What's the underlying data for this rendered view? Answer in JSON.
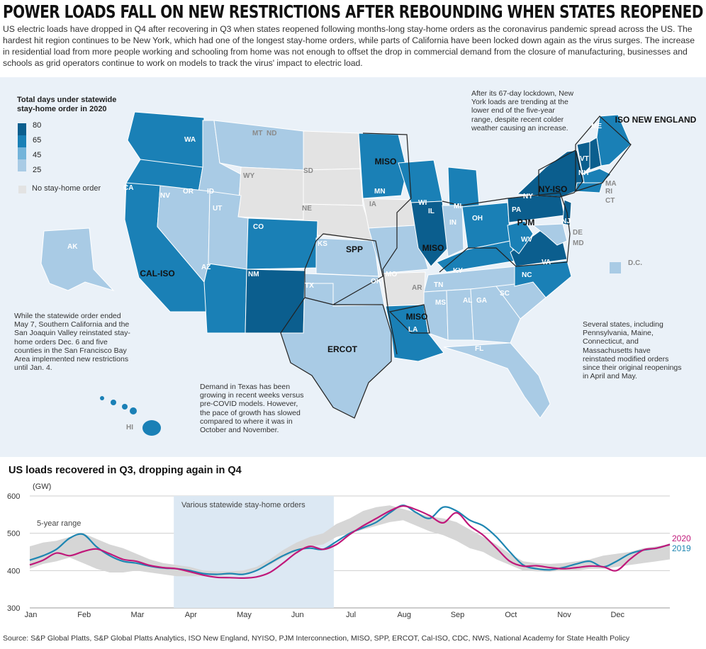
{
  "header": {
    "title": "POWER LOADS FALL ON NEW RESTRICTIONS AFTER REBOUNDING WHEN STATES REOPENED",
    "deck": "US electric loads have dropped in Q4 after recovering in Q3 when states reopened following months-long stay-home orders as the coronavirus pandemic spread across the US. The hardest hit region continues to be New York, which had one of the longest stay-home orders, while parts of California have been locked down again as the virus surges. The increase in residential load from more people working and schooling from home was not enough to offset the drop in commercial demand from the closure of manufacturing, businesses and schools as grid operators continue to work on models to track the virus' impact to electric load."
  },
  "map": {
    "legend_title": "Total days under statewide stay-home order in 2020",
    "legend_ticks": [
      "80",
      "65",
      "45",
      "25"
    ],
    "legend_colors": [
      "#0b5e8e",
      "#1a80b6",
      "#74b4da",
      "#a9cbe5"
    ],
    "no_order_label": "No stay-home order",
    "no_order_color": "#e3e3e3",
    "regions": [
      "MISO",
      "SPP",
      "ERCOT",
      "CAL-ISO",
      "PJM",
      "NY-ISO",
      "ISO NEW ENGLAND",
      "MISO"
    ],
    "states": [
      "WA",
      "OR",
      "ID",
      "MT",
      "ND",
      "SD",
      "WY",
      "NE",
      "CA",
      "NV",
      "UT",
      "CO",
      "AZ",
      "NM",
      "KS",
      "OK",
      "TX",
      "MN",
      "IA",
      "MO",
      "AR",
      "LA",
      "WI",
      "IL",
      "MI",
      "IN",
      "OH",
      "KY",
      "TN",
      "MS",
      "AL",
      "GA",
      "FL",
      "SC",
      "NC",
      "VA",
      "WV",
      "PA",
      "NY",
      "NJ",
      "DE",
      "MD",
      "VT",
      "NH",
      "ME",
      "MA",
      "RI",
      "CT",
      "AK",
      "HI",
      "D.C."
    ],
    "annotations": {
      "new_york": "After its 67-day lockdown, New York loads are trending at the lower end of the five-year range, despite recent colder weather causing an increase.",
      "california": "While the statewide order ended May 7, Southern California and the San Joaquin Valley reinstated stay-home orders Dec. 6 and five counties in the San Francisco Bay Area implemented new restrictions until Jan. 4.",
      "texas": "Demand in Texas has been growing in recent weeks versus pre-COVID models. However, the pace of growth has slowed compared to where it was in October and November.",
      "reopen_states": "Several states, including Pennsylvania, Maine, Connecticut, and Massachusetts have reinstated modified orders since their original reopenings in April and May."
    }
  },
  "chart": {
    "title": "US loads recovered in Q3, dropping again in Q4",
    "unit": "(GW)",
    "band_label": "Various statewide stay-home orders",
    "range_label": "5-year range"
  },
  "chart_data": {
    "type": "line",
    "title": "US loads recovered in Q3, dropping again in Q4",
    "ylabel": "(GW)",
    "ylim": [
      300,
      600
    ],
    "yticks": [
      300,
      400,
      500,
      600
    ],
    "xlim": [
      0,
      12
    ],
    "month_labels": [
      "Jan",
      "Feb",
      "Mar",
      "Apr",
      "May",
      "Jun",
      "Jul",
      "Aug",
      "Sep",
      "Oct",
      "Nov",
      "Dec"
    ],
    "shaded_period": {
      "label": "Various statewide stay-home orders",
      "start_month": 2.7,
      "end_month": 5.7
    },
    "x": [
      0,
      0.25,
      0.5,
      0.75,
      1,
      1.25,
      1.5,
      1.75,
      2,
      2.25,
      2.5,
      2.75,
      3,
      3.25,
      3.5,
      3.75,
      4,
      4.25,
      4.5,
      4.75,
      5,
      5.25,
      5.5,
      5.75,
      6,
      6.25,
      6.5,
      6.75,
      7,
      7.25,
      7.5,
      7.75,
      8,
      8.25,
      8.5,
      8.75,
      9,
      9.25,
      9.5,
      9.75,
      10,
      10.25,
      10.5,
      10.75,
      11,
      11.25,
      11.5,
      11.75,
      12
    ],
    "series": [
      {
        "name": "2020",
        "color": "#c0187a",
        "values": [
          415,
          428,
          447,
          440,
          451,
          458,
          445,
          430,
          425,
          414,
          408,
          405,
          397,
          388,
          382,
          381,
          380,
          383,
          395,
          420,
          448,
          465,
          457,
          470,
          497,
          520,
          540,
          560,
          573,
          563,
          547,
          528,
          555,
          520,
          495,
          460,
          425,
          412,
          413,
          408,
          405,
          408,
          412,
          410,
          400,
          430,
          455,
          460,
          470
        ]
      },
      {
        "name": "2019",
        "color": "#1e86b2",
        "values": [
          428,
          440,
          457,
          487,
          497,
          464,
          440,
          425,
          420,
          412,
          407,
          405,
          400,
          392,
          390,
          392,
          390,
          400,
          420,
          440,
          455,
          460,
          457,
          478,
          500,
          515,
          530,
          555,
          575,
          555,
          540,
          570,
          560,
          535,
          520,
          490,
          450,
          415,
          405,
          402,
          408,
          418,
          425,
          410,
          425,
          445,
          455,
          460,
          470
        ]
      },
      {
        "name": "5-year range",
        "color": "#d6d6d6",
        "low": [
          405,
          418,
          425,
          435,
          420,
          405,
          395,
          395,
          400,
          395,
          390,
          385,
          385,
          385,
          385,
          388,
          390,
          400,
          415,
          435,
          450,
          465,
          470,
          490,
          500,
          510,
          520,
          530,
          535,
          520,
          505,
          495,
          480,
          460,
          450,
          430,
          415,
          400,
          398,
          397,
          400,
          400,
          405,
          405,
          410,
          415,
          420,
          425,
          430
        ],
        "high": [
          465,
          475,
          480,
          490,
          500,
          485,
          470,
          460,
          445,
          430,
          420,
          415,
          410,
          400,
          398,
          398,
          400,
          410,
          430,
          455,
          475,
          490,
          500,
          525,
          540,
          560,
          570,
          575,
          565,
          555,
          545,
          540,
          530,
          510,
          490,
          470,
          445,
          425,
          420,
          418,
          420,
          425,
          430,
          440,
          445,
          450,
          460,
          465,
          470
        ]
      }
    ]
  },
  "footer": {
    "source": "Source: S&P Global Platts, S&P Global Platts Analytics, ISO New England, NYISO, PJM Interconnection, MISO, SPP, ERCOT, Cal-ISO, CDC, NWS, National Academy for State Health Policy"
  }
}
